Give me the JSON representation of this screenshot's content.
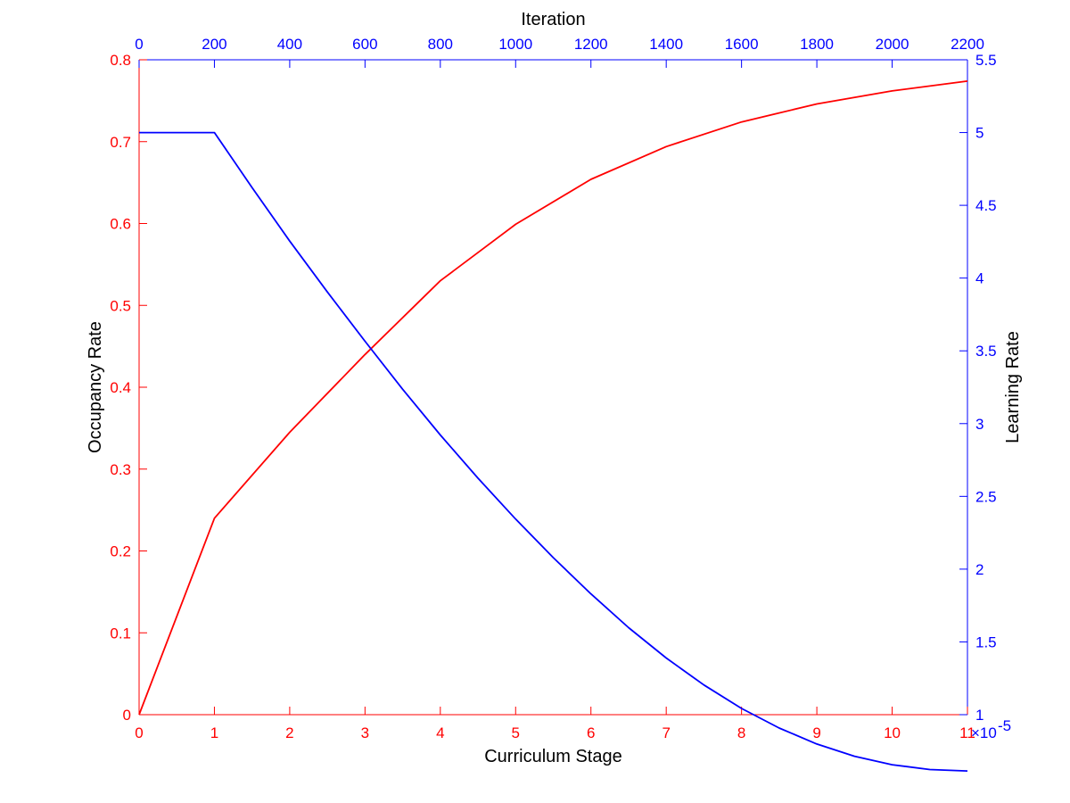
{
  "chart_data": {
    "type": "line",
    "title": "",
    "bottom_axis": {
      "label": "Curriculum Stage",
      "range": [
        0,
        11
      ],
      "ticks": [
        "0",
        "1",
        "2",
        "3",
        "4",
        "5",
        "6",
        "7",
        "8",
        "9",
        "10",
        "11"
      ]
    },
    "top_axis": {
      "label": "Iteration",
      "range": [
        0,
        2200
      ],
      "ticks": [
        "0",
        "200",
        "400",
        "600",
        "800",
        "1000",
        "1200",
        "1400",
        "1600",
        "1800",
        "2000",
        "2200"
      ]
    },
    "left_axis": {
      "label": "Occupancy Rate",
      "range": [
        0,
        0.8
      ],
      "ticks": [
        "0",
        "0.1",
        "0.2",
        "0.3",
        "0.4",
        "0.5",
        "0.6",
        "0.7",
        "0.8"
      ]
    },
    "right_axis": {
      "label": "Learning Rate",
      "range": [
        1,
        5.5
      ],
      "ticks": [
        "1",
        "1.5",
        "2",
        "2.5",
        "3",
        "3.5",
        "4",
        "4.5",
        "5",
        "5.5"
      ],
      "exponent_label": "×10",
      "exponent_power": "-5"
    },
    "series": [
      {
        "axis_x": "bottom",
        "axis_y": "left",
        "color": "#ff0000",
        "x": [
          0,
          1,
          2,
          3,
          4,
          5,
          6,
          7,
          8,
          9,
          10,
          11
        ],
        "y": [
          0,
          0.24,
          0.345,
          0.44,
          0.53,
          0.599,
          0.654,
          0.694,
          0.724,
          0.746,
          0.762,
          0.774
        ]
      },
      {
        "axis_x": "top",
        "axis_y": "right",
        "color": "#0000ff",
        "x": [
          0,
          200,
          300,
          400,
          500,
          600,
          700,
          800,
          900,
          1000,
          1100,
          1200,
          1300,
          1400,
          1500,
          1600,
          1700,
          1800,
          1900,
          2000,
          2100,
          2200
        ],
        "y": [
          5.0,
          5.0,
          4.622,
          4.254,
          3.905,
          3.566,
          3.236,
          2.922,
          2.625,
          2.344,
          2.079,
          1.83,
          1.598,
          1.389,
          1.204,
          1.043,
          0.908,
          0.798,
          0.714,
          0.656,
          0.623,
          0.613
        ]
      }
    ],
    "colors": {
      "left": "#ff0000",
      "right": "#0000ff"
    },
    "grid": false,
    "legend": "none"
  }
}
